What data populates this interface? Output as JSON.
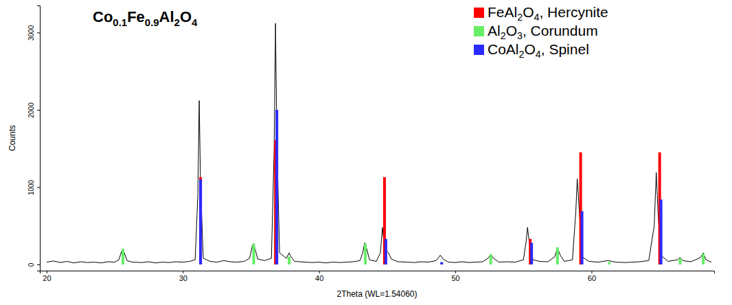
{
  "chart_data": {
    "type": "line",
    "title": "Co0.1Fe0.9Al2O4",
    "xlabel": "2Theta (WL=1.54060)",
    "ylabel": "Counts",
    "xlim": [
      19.5,
      69
    ],
    "ylim": [
      -80,
      3350
    ],
    "xticks": [
      20,
      30,
      40,
      50,
      60
    ],
    "yticks": [
      0,
      1000,
      2000,
      3000
    ],
    "grid": false,
    "legend": "top-right",
    "series": [
      {
        "type": "line",
        "color": "#000000",
        "x": [
          20.0,
          20.5,
          21.0,
          21.5,
          22.0,
          22.5,
          23.0,
          23.5,
          24.0,
          24.5,
          25.0,
          25.3,
          25.5,
          25.6,
          25.7,
          25.9,
          26.3,
          27.0,
          27.5,
          28.0,
          28.5,
          29.0,
          29.5,
          30.0,
          30.5,
          30.9,
          31.1,
          31.2,
          31.3,
          31.5,
          32.0,
          32.5,
          33.0,
          33.5,
          34.0,
          34.5,
          34.9,
          35.1,
          35.2,
          35.3,
          35.5,
          36.0,
          36.5,
          36.7,
          36.8,
          36.9,
          37.1,
          37.6,
          37.8,
          37.9,
          38.2,
          39.0,
          39.5,
          40.0,
          40.5,
          41.0,
          41.5,
          42.0,
          42.5,
          43.0,
          43.2,
          43.35,
          43.5,
          43.7,
          44.2,
          44.5,
          44.65,
          44.8,
          45.1,
          45.3,
          45.8,
          46.5,
          47.0,
          47.5,
          48.0,
          48.6,
          48.9,
          49.1,
          49.5,
          50.0,
          50.5,
          51.0,
          51.5,
          52.0,
          52.4,
          52.6,
          52.8,
          53.2,
          53.8,
          54.4,
          55.0,
          55.2,
          55.3,
          55.45,
          55.7,
          56.2,
          56.8,
          57.3,
          57.5,
          57.7,
          58.0,
          58.6,
          58.85,
          58.95,
          59.1,
          59.3,
          59.8,
          60.5,
          61.2,
          61.8,
          62.5,
          63.0,
          63.5,
          64.2,
          64.6,
          64.75,
          64.9,
          65.1,
          65.6,
          66.3,
          66.5,
          66.7,
          67.3,
          68.0,
          68.2,
          68.4,
          68.8
        ],
        "values": [
          30,
          45,
          25,
          40,
          20,
          35,
          25,
          30,
          20,
          35,
          30,
          60,
          170,
          200,
          150,
          50,
          30,
          25,
          35,
          20,
          30,
          25,
          35,
          30,
          40,
          60,
          900,
          2120,
          1000,
          80,
          40,
          30,
          50,
          35,
          30,
          40,
          80,
          240,
          270,
          200,
          70,
          50,
          80,
          1500,
          3120,
          1600,
          150,
          80,
          150,
          110,
          40,
          30,
          25,
          30,
          20,
          30,
          25,
          30,
          35,
          50,
          150,
          280,
          200,
          60,
          40,
          150,
          480,
          200,
          150,
          70,
          35,
          30,
          25,
          35,
          30,
          50,
          120,
          70,
          30,
          25,
          35,
          25,
          30,
          35,
          80,
          130,
          80,
          30,
          35,
          30,
          60,
          300,
          480,
          250,
          60,
          40,
          35,
          100,
          220,
          120,
          40,
          60,
          700,
          1110,
          700,
          100,
          40,
          30,
          50,
          30,
          25,
          30,
          35,
          50,
          500,
          1190,
          600,
          120,
          40,
          60,
          90,
          50,
          35,
          90,
          150,
          60,
          30
        ]
      },
      {
        "name": "FeAl2O4, Hercynite",
        "type": "bar",
        "color": "#ff0000",
        "x": [
          31.3,
          36.8,
          44.8,
          55.5,
          59.2,
          65.0
        ],
        "values": [
          1130,
          1610,
          1130,
          330,
          1450,
          1450
        ]
      },
      {
        "name": "Al2O3, Corundum",
        "type": "bar",
        "color": "#66ee66",
        "x": [
          25.6,
          35.2,
          37.8,
          43.4,
          52.6,
          57.5,
          61.3,
          66.5,
          68.2
        ],
        "values": [
          200,
          270,
          100,
          270,
          130,
          220,
          30,
          80,
          140
        ]
      },
      {
        "name": "CoAl2O4, Spinel",
        "type": "bar",
        "color": "#2a2aff",
        "x": [
          31.3,
          36.9,
          44.9,
          49.0,
          55.6,
          59.3,
          65.1
        ],
        "values": [
          1100,
          2000,
          330,
          30,
          280,
          690,
          840
        ]
      }
    ]
  }
}
